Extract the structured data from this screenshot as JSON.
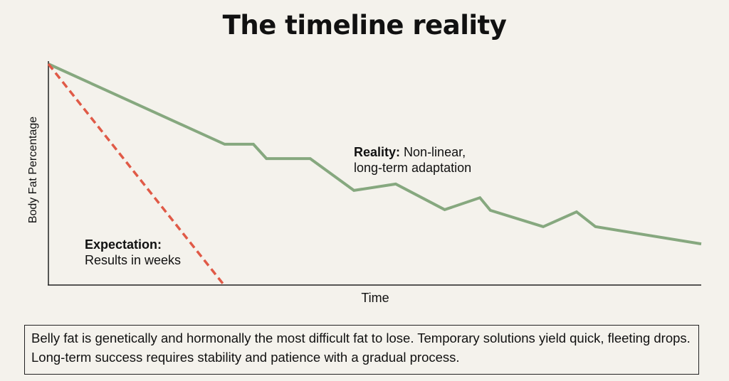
{
  "title": "The timeline reality",
  "chart_data": {
    "type": "line",
    "title": "The timeline reality",
    "xlabel": "Time",
    "ylabel": "Body Fat Percentage",
    "xlim": [
      0,
      100
    ],
    "ylim": [
      0,
      100
    ],
    "grid": false,
    "series": [
      {
        "key": "reality",
        "color": "#86a87f",
        "style": "solid",
        "x": [
          0,
          27.0,
          31.4,
          33.4,
          40.1,
          46.8,
          53.2,
          60.7,
          66.1,
          67.7,
          75.8,
          80.9,
          83.8,
          100
        ],
        "y": [
          100,
          63.7,
          63.7,
          57.2,
          57.2,
          42.8,
          45.7,
          34.1,
          39.5,
          33.8,
          26.4,
          33.1,
          26.4,
          18.6
        ]
      },
      {
        "key": "expectation",
        "color": "#e05a47",
        "style": "dashed",
        "x": [
          0,
          26.9
        ],
        "y": [
          100,
          0
        ]
      }
    ],
    "annotations": {
      "reality_bold": "Reality:",
      "reality_text1": "Non-linear,",
      "reality_text2": "long-term adaptation",
      "expectation_bold": "Expectation:",
      "expectation_text": "Results in weeks"
    }
  },
  "caption": "Belly fat is genetically and hormonally the most difficult fat to lose. Temporary solutions yield quick, fleeting drops. Long-term success requires stability and patience with a gradual process."
}
